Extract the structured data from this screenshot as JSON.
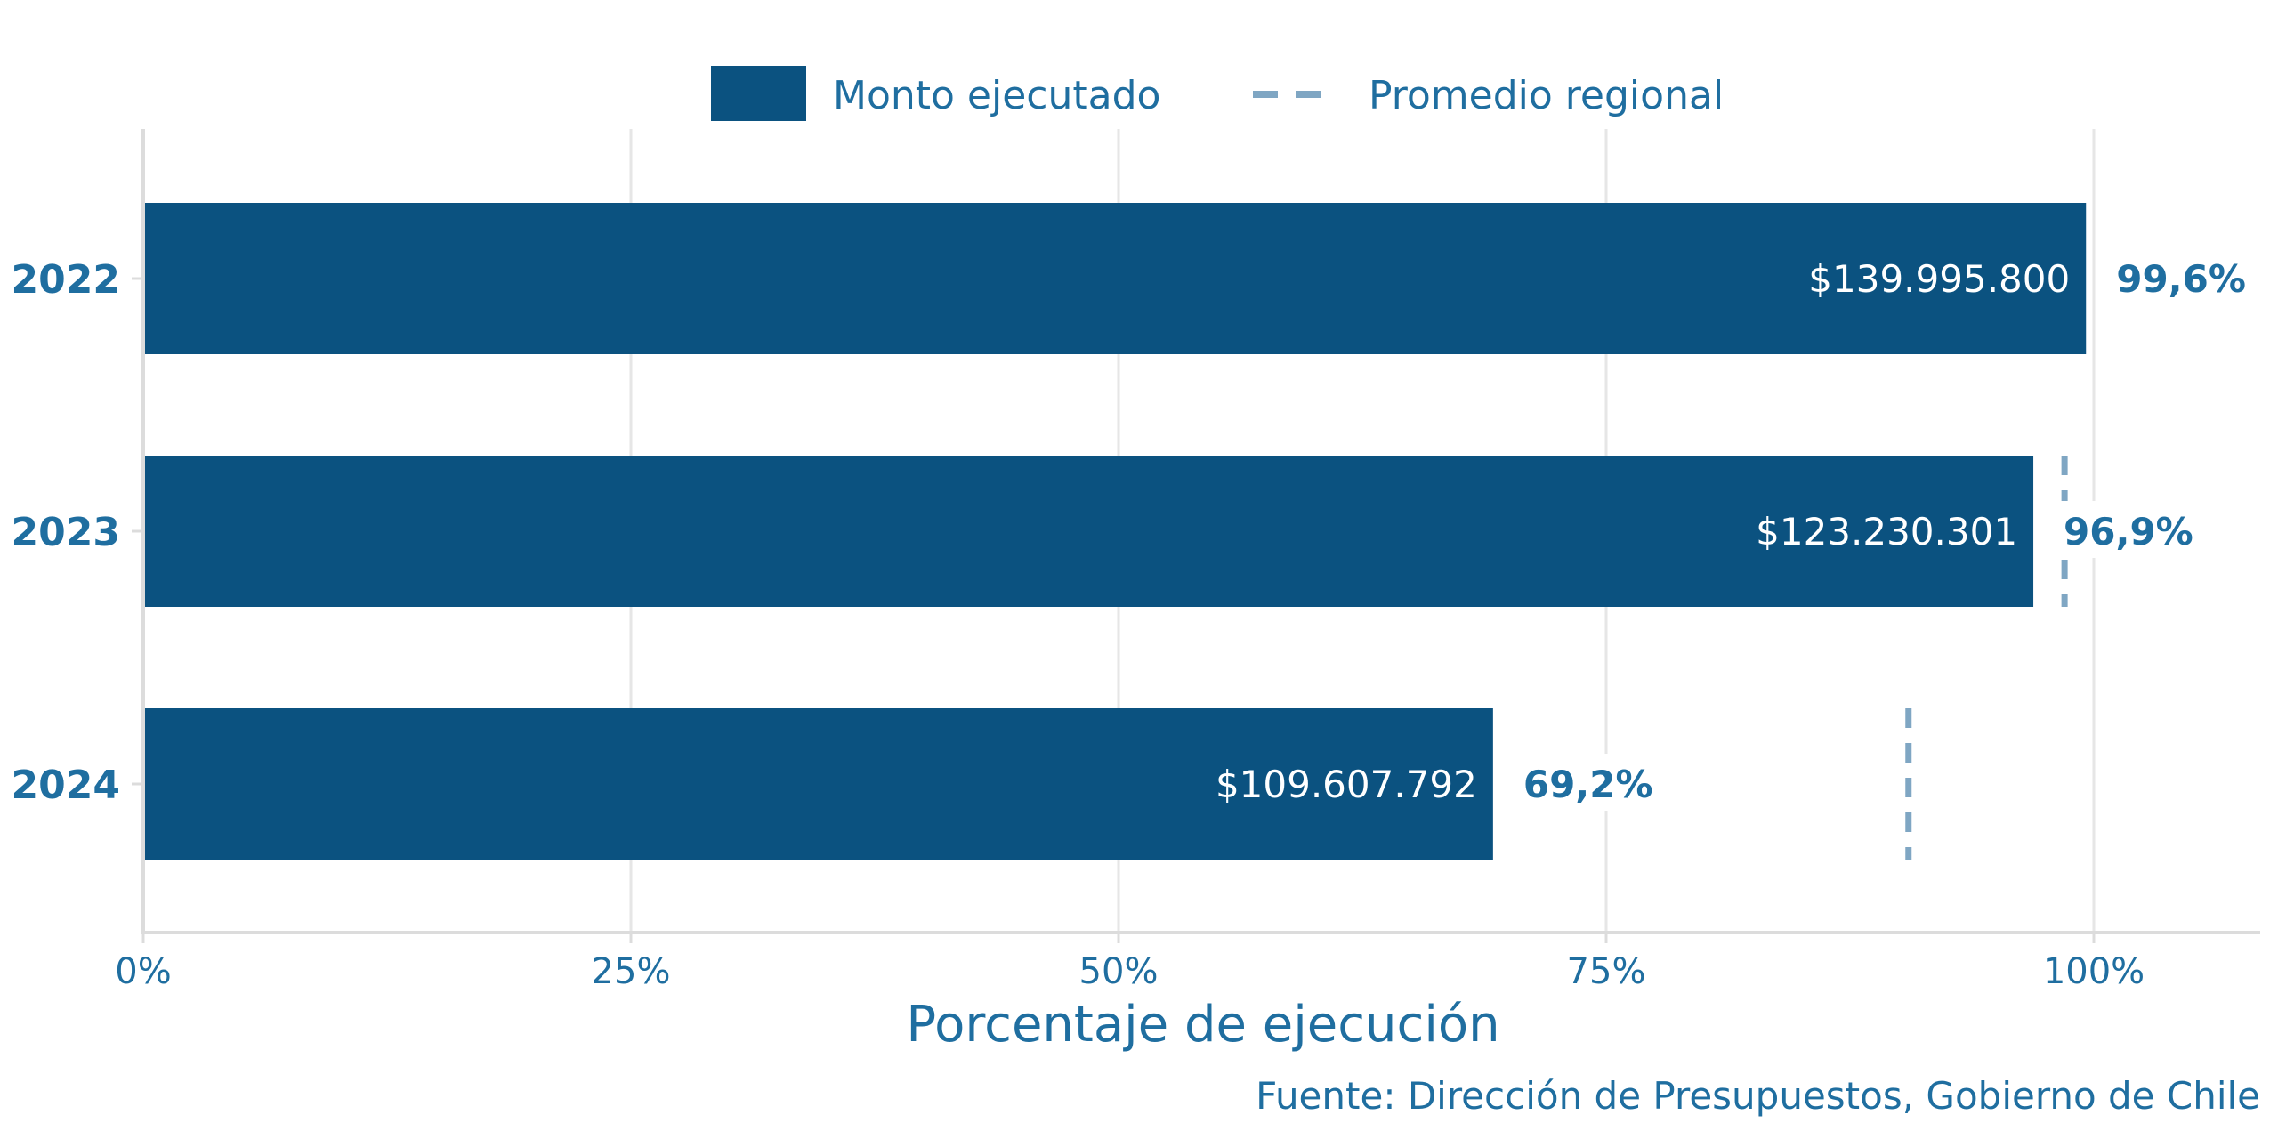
{
  "colors": {
    "bar": "#0b5280",
    "regional_avg": "#7fa6c3",
    "text": "#1f6ea0",
    "grid": "#e6e6e6",
    "axis": "#dcdcdc"
  },
  "legend": {
    "executed_label": "Monto ejecutado",
    "regional_label": "Promedio regional"
  },
  "source": "Fuente: Dirección de Presupuestos, Gobierno de Chile",
  "chart_data": {
    "type": "bar",
    "orientation": "horizontal",
    "xlabel": "Porcentaje de ejecución",
    "xlim": [
      0,
      1.085
    ],
    "xticks": [
      {
        "value": 0,
        "label": "0%"
      },
      {
        "value": 0.25,
        "label": "25%"
      },
      {
        "value": 0.5,
        "label": "50%"
      },
      {
        "value": 0.75,
        "label": "75%"
      },
      {
        "value": 1,
        "label": "100%"
      }
    ],
    "grid": true,
    "legend_position": "top",
    "categories": [
      "2022",
      "2023",
      "2024"
    ],
    "series": [
      {
        "name": "Monto ejecutado",
        "values": [
          0.996,
          0.969,
          0.692
        ],
        "pct_labels": [
          "99,6%",
          "96,9%",
          "69,2%"
        ],
        "amount_labels": [
          "$139.995.800",
          "$123.230.301",
          "$109.607.792"
        ]
      },
      {
        "name": "Promedio regional",
        "values": [
          null,
          0.985,
          0.905
        ]
      }
    ]
  }
}
